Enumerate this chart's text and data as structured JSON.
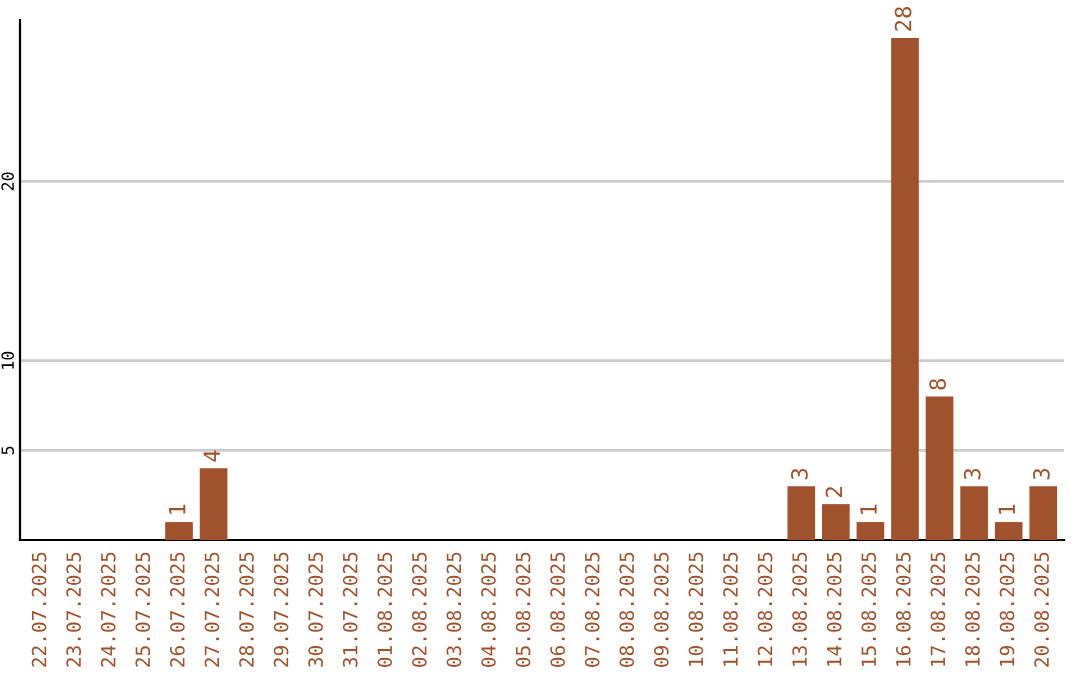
{
  "chart_data": {
    "type": "bar",
    "categories": [
      "22.07.2025",
      "23.07.2025",
      "24.07.2025",
      "25.07.2025",
      "26.07.2025",
      "27.07.2025",
      "28.07.2025",
      "29.07.2025",
      "30.07.2025",
      "31.07.2025",
      "01.08.2025",
      "02.08.2025",
      "03.08.2025",
      "04.08.2025",
      "05.08.2025",
      "06.08.2025",
      "07.08.2025",
      "08.08.2025",
      "09.08.2025",
      "10.08.2025",
      "11.08.2025",
      "12.08.2025",
      "13.08.2025",
      "14.08.2025",
      "15.08.2025",
      "16.08.2025",
      "17.08.2025",
      "18.08.2025",
      "19.08.2025",
      "20.08.2025"
    ],
    "values": [
      0,
      0,
      0,
      0,
      1,
      4,
      0,
      0,
      0,
      0,
      0,
      0,
      0,
      0,
      0,
      0,
      0,
      0,
      0,
      0,
      0,
      0,
      3,
      2,
      1,
      28,
      8,
      3,
      1,
      3
    ],
    "value_labels": [
      null,
      null,
      null,
      null,
      "1",
      "4",
      null,
      null,
      null,
      null,
      null,
      null,
      null,
      null,
      null,
      null,
      null,
      null,
      null,
      null,
      null,
      null,
      "3",
      "2",
      "1",
      "28",
      "8",
      "3",
      "1",
      "3"
    ],
    "color": "#a0522d",
    "ylim": [
      0,
      29
    ],
    "yticks": [
      5,
      10,
      20
    ],
    "grid": "y",
    "legend": false
  }
}
